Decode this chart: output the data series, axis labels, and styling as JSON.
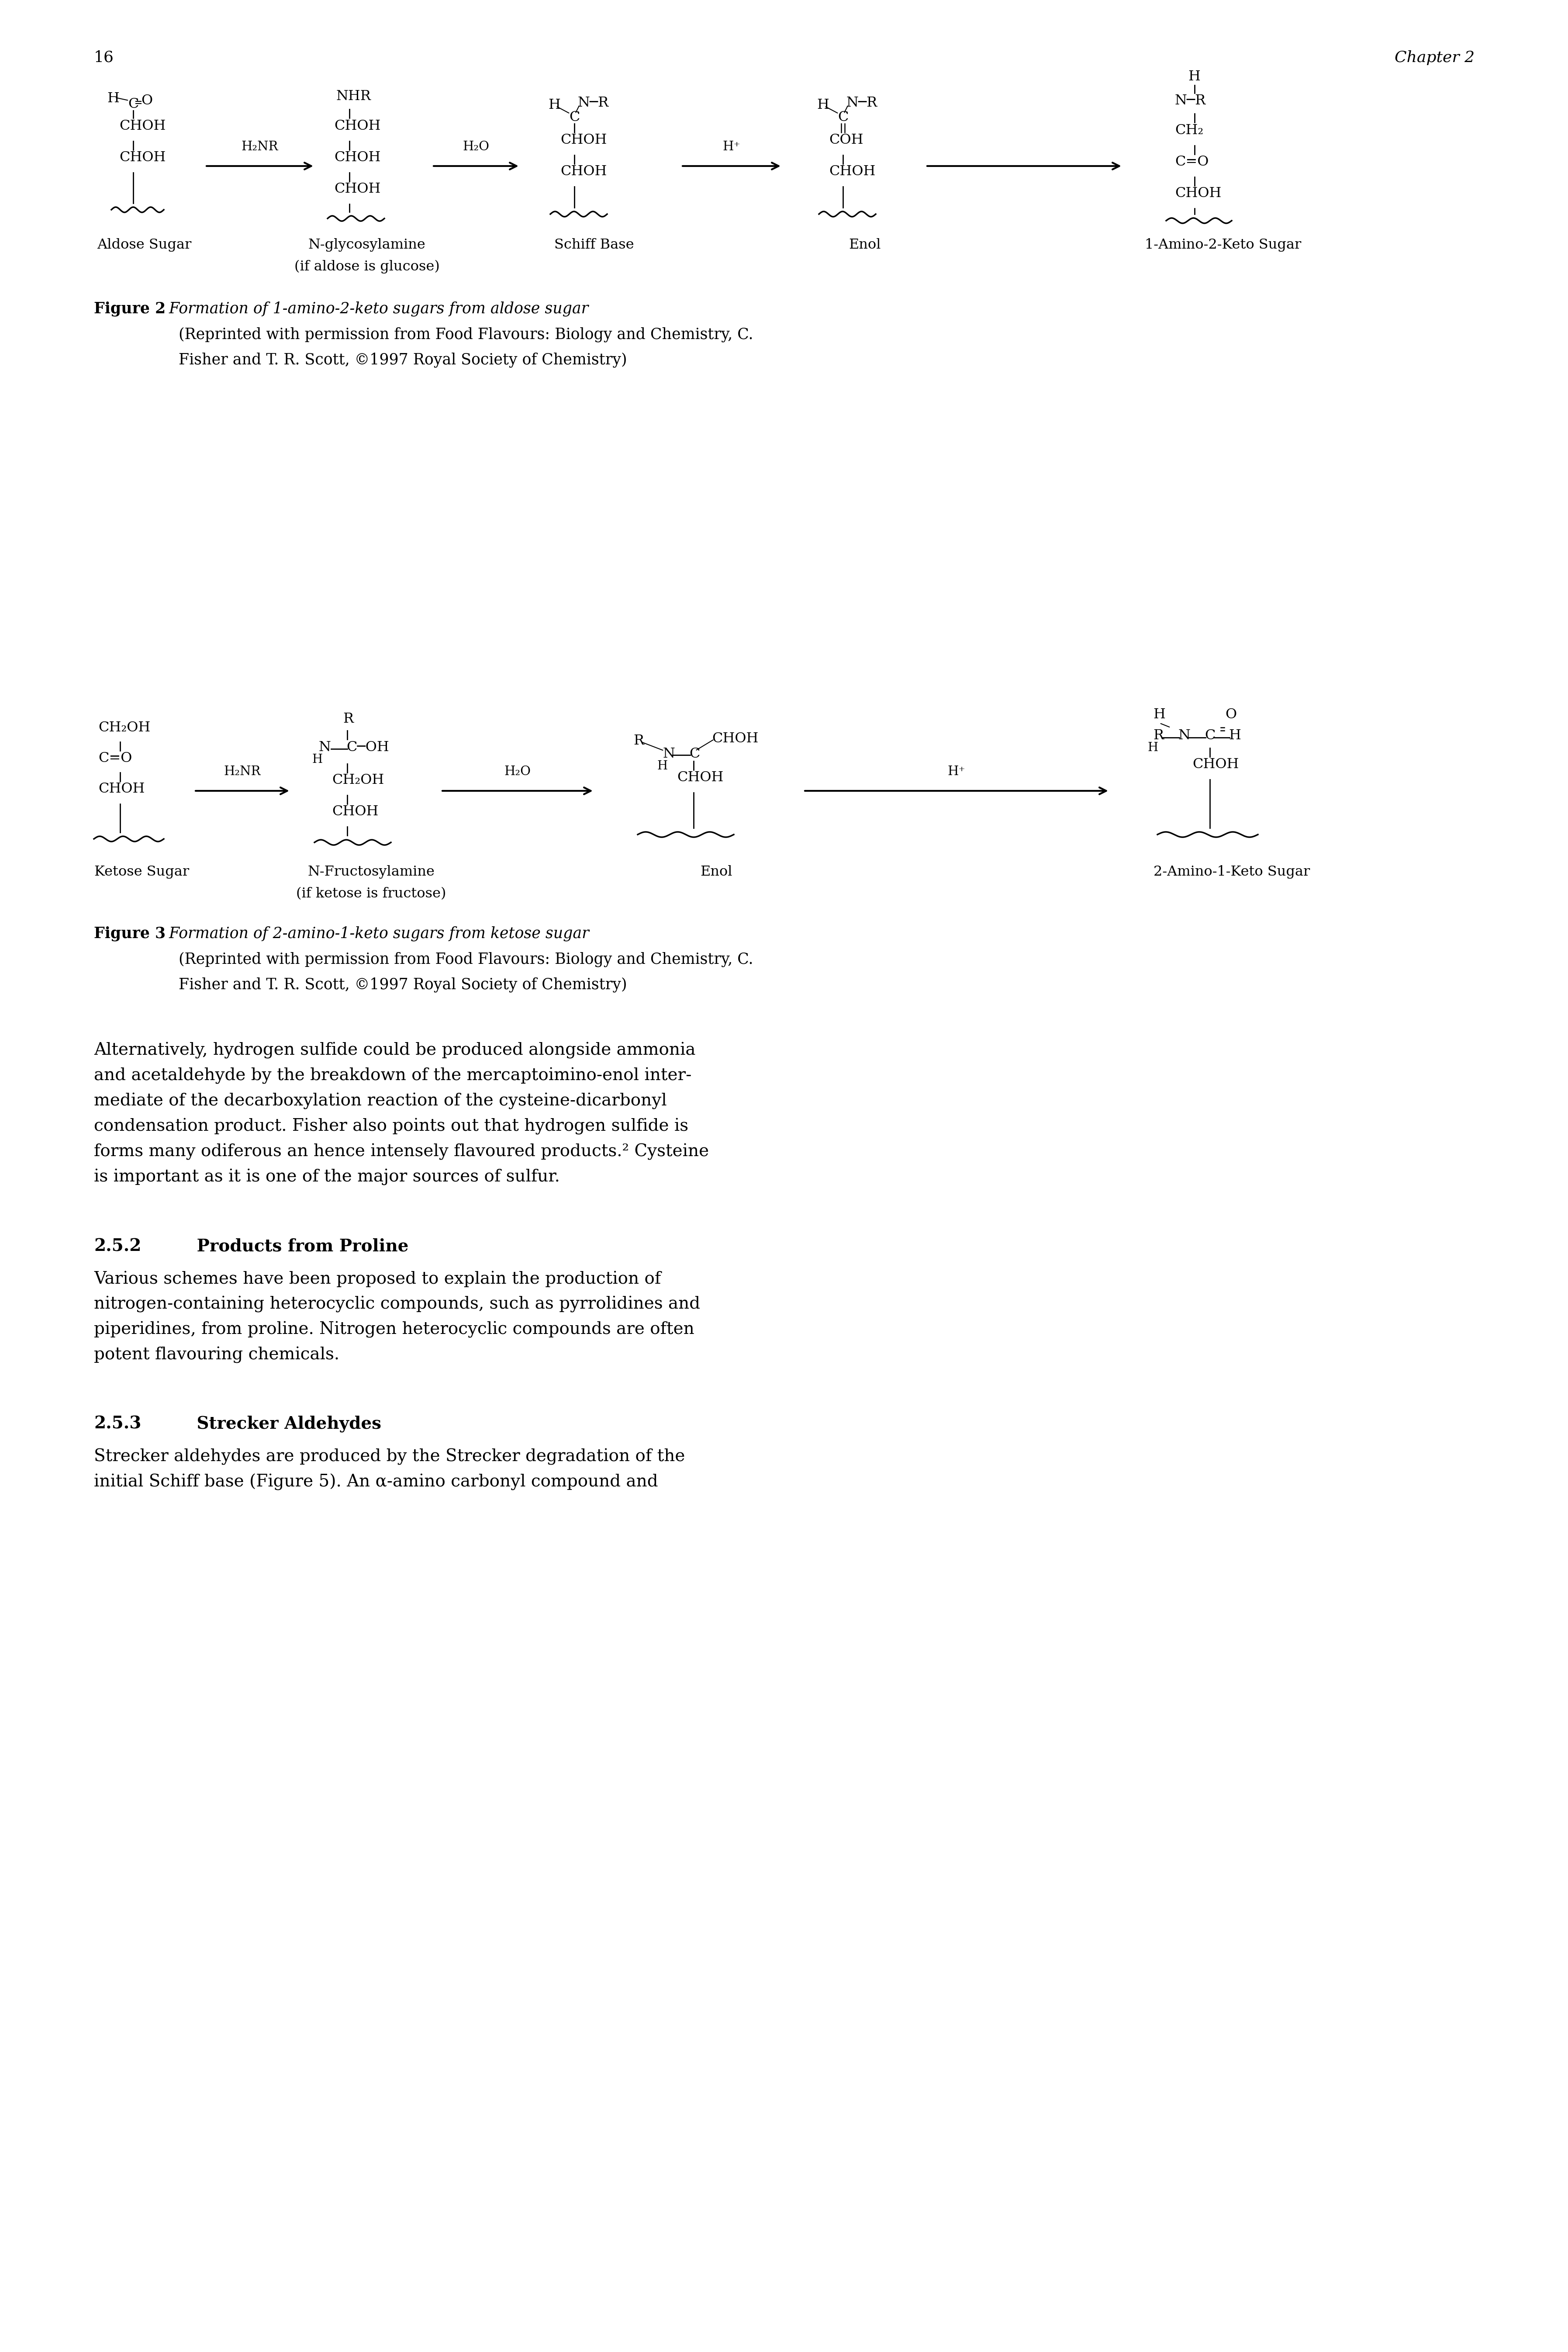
{
  "page_number": "16",
  "chapter": "Chapter 2",
  "background_color": "#ffffff",
  "text_color": "#000000",
  "fig2_caption_bold": "Figure 2",
  "fig2_caption_italic": "  Formation of 1-amino-2-keto sugars from aldose sugar",
  "fig2_caption_line2": "    (Reprinted with permission from Food Flavours: Biology and Chemistry, C.",
  "fig2_caption_line3": "    Fisher and T. R. Scott, ©1997 Royal Society of Chemistry)",
  "fig3_caption_bold": "Figure 3",
  "fig3_caption_italic": "  Formation of 2-amino-1-keto sugars from ketose sugar",
  "fig3_caption_line2": "    (Reprinted with permission from Food Flavours: Biology and Chemistry, C.",
  "fig3_caption_line3": "    Fisher and T. R. Scott, ©1997 Royal Society of Chemistry)",
  "section_252_bold": "2.5.2",
  "section_252_title": "   Products from Proline",
  "section_252_text": "Various schemes have been proposed to explain the production of nitrogen-containing heterocyclic compounds, such as pyrrolidines and piperidines, from proline. Nitrogen heterocyclic compounds are often potent flavouring chemicals.",
  "section_253_bold": "2.5.3",
  "section_253_title": "   Strecker Aldehydes",
  "section_253_text": "Strecker aldehydes are produced by the Strecker degradation of the initial Schiff base (Figure 5). An α-amino carbonyl compound and",
  "paragraph_text": "Alternatively, hydrogen sulfide could be produced alongside ammonia and acetaldehyde by the breakdown of the mercaptoimino-enol inter-mediate of the decarboxylation reaction of the cysteine-dicarbonyl condensation product. Fisher also points out that hydrogen sulfide is forms many odiferous an hence intensely flavoured products.² Cysteine is important as it is one of the major sources of sulfur."
}
